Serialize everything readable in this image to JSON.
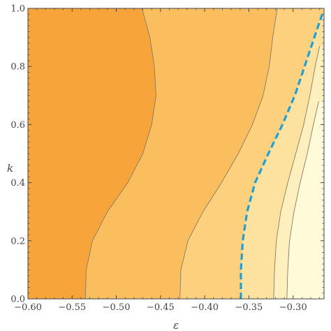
{
  "chart_data": {
    "type": "contour",
    "title": "",
    "xlabel": "ε",
    "ylabel": "k",
    "xlim": [
      -0.6,
      -0.265
    ],
    "ylim": [
      0.0,
      1.0
    ],
    "x_ticks": [
      -0.6,
      -0.55,
      -0.5,
      -0.45,
      -0.4,
      -0.35,
      -0.3
    ],
    "x_tick_labels": [
      "−0.60",
      "−0.55",
      "−0.50",
      "−0.45",
      "−0.40",
      "−0.35",
      "−0.30"
    ],
    "y_ticks": [
      0.0,
      0.2,
      0.4,
      0.6,
      0.8,
      1.0
    ],
    "y_tick_labels": [
      "0.0",
      "0.2",
      "0.4",
      "0.6",
      "0.8",
      "1.0"
    ],
    "region_colors": [
      "#f7a43a",
      "#fbbe5f",
      "#fdd07e",
      "#fde29f",
      "#fef0be",
      "#fffbd9"
    ],
    "contour_line_color": "#8a7a62",
    "dashed_curve_color": "#1f9fd6",
    "contours": [
      {
        "points": [
          [
            -0.535,
            0.0
          ],
          [
            -0.534,
            0.1
          ],
          [
            -0.527,
            0.2
          ],
          [
            -0.51,
            0.3
          ],
          [
            -0.487,
            0.4
          ],
          [
            -0.47,
            0.5
          ],
          [
            -0.46,
            0.6
          ],
          [
            -0.455,
            0.7
          ],
          [
            -0.457,
            0.8
          ],
          [
            -0.462,
            0.9
          ],
          [
            -0.471,
            1.0
          ]
        ]
      },
      {
        "points": [
          [
            -0.428,
            0.0
          ],
          [
            -0.427,
            0.1
          ],
          [
            -0.419,
            0.2
          ],
          [
            -0.402,
            0.3
          ],
          [
            -0.381,
            0.4
          ],
          [
            -0.362,
            0.5
          ],
          [
            -0.346,
            0.6
          ],
          [
            -0.334,
            0.7
          ],
          [
            -0.327,
            0.8
          ],
          [
            -0.323,
            0.9
          ],
          [
            -0.318,
            1.0
          ]
        ]
      },
      {
        "points": [
          [
            -0.322,
            0.0
          ],
          [
            -0.321,
            0.1
          ],
          [
            -0.319,
            0.2
          ],
          [
            -0.314,
            0.3
          ],
          [
            -0.306,
            0.4
          ],
          [
            -0.297,
            0.5
          ],
          [
            -0.288,
            0.6
          ],
          [
            -0.281,
            0.7
          ],
          [
            -0.275,
            0.8
          ],
          [
            -0.27,
            0.87
          ]
        ]
      },
      {
        "points": [
          [
            -0.307,
            0.0
          ],
          [
            -0.306,
            0.1
          ],
          [
            -0.304,
            0.2
          ],
          [
            -0.299,
            0.3
          ],
          [
            -0.292,
            0.4
          ],
          [
            -0.284,
            0.5
          ],
          [
            -0.277,
            0.6
          ],
          [
            -0.271,
            0.68
          ]
        ]
      }
    ],
    "dashed_curve": {
      "points": [
        [
          -0.359,
          0.0
        ],
        [
          -0.359,
          0.1
        ],
        [
          -0.357,
          0.2
        ],
        [
          -0.352,
          0.3
        ],
        [
          -0.343,
          0.4
        ],
        [
          -0.328,
          0.5
        ],
        [
          -0.312,
          0.6
        ],
        [
          -0.298,
          0.7
        ],
        [
          -0.287,
          0.8
        ],
        [
          -0.276,
          0.9
        ],
        [
          -0.267,
          0.98
        ]
      ]
    }
  }
}
